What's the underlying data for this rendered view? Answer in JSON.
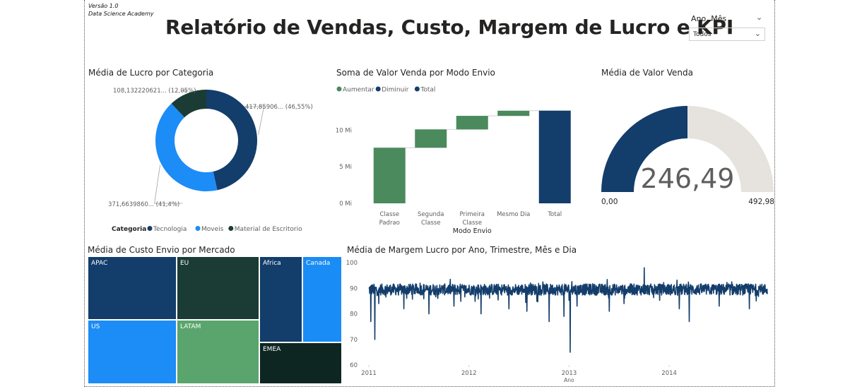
{
  "header": {
    "version_line1": "Versão 1.0",
    "version_line2": "Data Science Academy",
    "title": "Relatório de Vendas, Custo, Margem de Lucro e KPI"
  },
  "slicer": {
    "label": "Ano, Mês",
    "value": "Todos",
    "chevron_icon": "chevron-down-icon"
  },
  "colors": {
    "tecnologia": "#133d6b",
    "moveis": "#1c8cf7",
    "material": "#1a3c34",
    "aumentar": "#4a8a5c",
    "total": "#133d6b",
    "gauge_fill": "#133d6b",
    "gauge_bg": "#e6e2de",
    "emea": "#0e2622",
    "latam": "#5aa56d",
    "canada": "#1a8cf5"
  },
  "chart_data": [
    {
      "id": "donut",
      "type": "pie",
      "title": "Média de Lucro por Categoria",
      "legend_title": "Categoria",
      "legend_position": "bottom",
      "slices": [
        {
          "name": "Tecnologia",
          "value": 417.85906,
          "label": "417,85906... (46,55%)"
        },
        {
          "name": "Moveis",
          "value": 371.663986,
          "label": "371,6639860... (41,4%)"
        },
        {
          "name": "Material de Escritorio",
          "value": 108.132220621,
          "label": "108,132220621... (12,05%)"
        }
      ]
    },
    {
      "id": "waterfall",
      "type": "bar",
      "subtype": "waterfall",
      "title": "Soma de Valor Venda por Modo Envio",
      "legend": [
        "Aumentar",
        "Diminuir",
        "Total"
      ],
      "legend_position": "top-left",
      "xlabel": "Modo Envio",
      "categories": [
        "Classe Padrao",
        "Segunda Classe",
        "Primeira Classe",
        "Mesmo Dia",
        "Total"
      ],
      "values": [
        7.6,
        2.5,
        1.85,
        0.7,
        12.65
      ],
      "ylim": [
        0,
        13.5
      ],
      "yticks": [
        "0 Mi",
        "5 Mi",
        "10 Mi"
      ],
      "ytick_values": [
        0,
        5,
        10
      ],
      "grid": false
    },
    {
      "id": "gauge",
      "type": "gauge",
      "title": "Média de Valor Venda",
      "value": 246.49,
      "value_label": "246,49",
      "min_label": "0,00",
      "max_label": "492,98",
      "min": 0,
      "max": 492.98
    },
    {
      "id": "treemap",
      "type": "treemap",
      "title": "Média de Custo Envio por Mercado",
      "items": [
        {
          "name": "APAC"
        },
        {
          "name": "EU"
        },
        {
          "name": "US"
        },
        {
          "name": "LATAM"
        },
        {
          "name": "Africa"
        },
        {
          "name": "EMEA"
        },
        {
          "name": "Canada"
        }
      ]
    },
    {
      "id": "line",
      "type": "line",
      "title": "Média de Margem Lucro por Ano, Trimestre, Mês e Dia",
      "xlabel": "Ano",
      "ylim": [
        60,
        100
      ],
      "yticks": [
        60,
        70,
        80,
        90,
        100
      ],
      "xticks": [
        "2011",
        "2012",
        "2013",
        "2014"
      ],
      "xlim": [
        2011.0,
        2014.98
      ],
      "baseline": 89.5,
      "noise_amplitude": 2.2,
      "n_points": 1400,
      "spikes": [
        {
          "x": 2011.02,
          "y": 77
        },
        {
          "x": 2011.06,
          "y": 70
        },
        {
          "x": 2011.1,
          "y": 84
        },
        {
          "x": 2011.35,
          "y": 82
        },
        {
          "x": 2011.6,
          "y": 80
        },
        {
          "x": 2011.85,
          "y": 83
        },
        {
          "x": 2012.12,
          "y": 80
        },
        {
          "x": 2012.4,
          "y": 82
        },
        {
          "x": 2012.58,
          "y": 81
        },
        {
          "x": 2012.8,
          "y": 77
        },
        {
          "x": 2012.95,
          "y": 79
        },
        {
          "x": 2013.01,
          "y": 65
        },
        {
          "x": 2013.08,
          "y": 83
        },
        {
          "x": 2013.4,
          "y": 81
        },
        {
          "x": 2013.55,
          "y": 84
        },
        {
          "x": 2013.75,
          "y": 98
        },
        {
          "x": 2014.1,
          "y": 82
        },
        {
          "x": 2014.2,
          "y": 77
        },
        {
          "x": 2014.5,
          "y": 83
        },
        {
          "x": 2014.8,
          "y": 82
        }
      ]
    }
  ]
}
